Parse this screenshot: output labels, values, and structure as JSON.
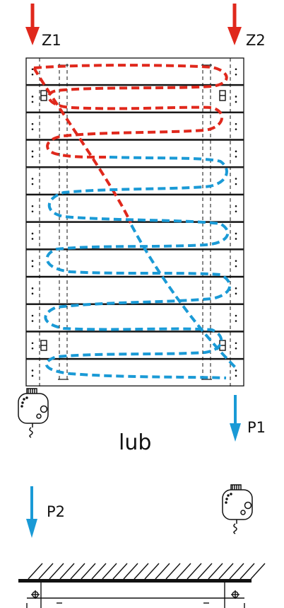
{
  "labels": {
    "z1": "Z1",
    "z2": "Z2",
    "p1": "P1",
    "p2": "P2",
    "or_word": "lub"
  },
  "colors": {
    "supply_flow": "#e0281c",
    "return_flow": "#1a9ad6",
    "outline": "#111111"
  },
  "icons": {
    "heating_element": "electric-heater-icon",
    "thermostat_valve": "valve-icon"
  }
}
